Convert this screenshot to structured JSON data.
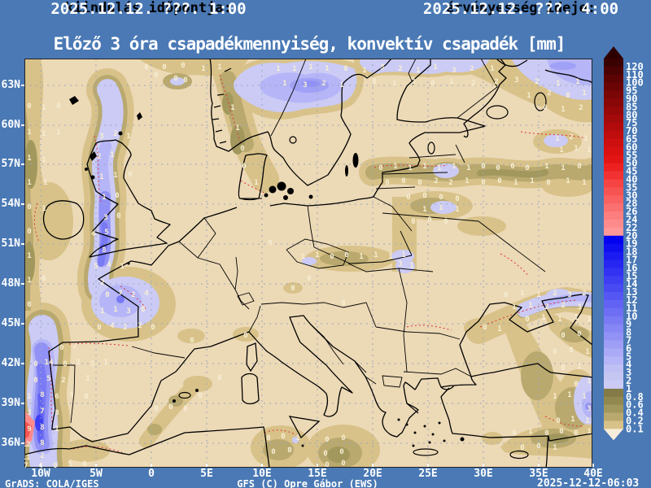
{
  "header": {
    "init_label": "kiindulás időpontja:",
    "init_value": "2025.12.12. ???. 1:00",
    "valid_label": "érvényesség ideje:",
    "valid_value": "2025.12.12. ???. 4:00"
  },
  "title": "Előző 3 óra csapadékmennyiség, konvektív csapadék [mm]",
  "footer": {
    "left": "GrADS: COLA/IGES",
    "center": "GFS (C) Opre Gábor (EWS)",
    "right": "2025-12-12-06:03"
  },
  "colors": {
    "page_bg": "#4a79b5",
    "map_bg": "#ecd9b6",
    "grid": "#9aa8bc",
    "coast": "#000000",
    "red_dash": "#e03434",
    "value_text": "#f7eed3",
    "text_light": "#ffffff",
    "text_dark": "#000000"
  },
  "axes": {
    "lat": [
      [
        "63N",
        33
      ],
      [
        "60N",
        82
      ],
      [
        "57N",
        130
      ],
      [
        "54N",
        179
      ],
      [
        "51N",
        228
      ],
      [
        "48N",
        277
      ],
      [
        "45N",
        326
      ],
      [
        "42N",
        375
      ],
      [
        "39N",
        424
      ],
      [
        "36N",
        473
      ]
    ],
    "lon": [
      [
        "10W",
        20
      ],
      [
        "5W",
        88
      ],
      [
        "0",
        156
      ],
      [
        "5E",
        224
      ],
      [
        "10E",
        292
      ],
      [
        "15E",
        360
      ],
      [
        "20E",
        428
      ],
      [
        "25E",
        496
      ],
      [
        "30E",
        564
      ],
      [
        "35E",
        632
      ],
      [
        "40E",
        699
      ]
    ]
  },
  "colorbar": {
    "arrow_top_color": "#2d0000",
    "arrow_bottom_color": "#f6eedb",
    "labels": [
      "120",
      "110",
      "100",
      "95",
      "90",
      "85",
      "80",
      "75",
      "70",
      "65",
      "60",
      "55",
      "50",
      "45",
      "40",
      "35",
      "30",
      "28",
      "26",
      "24",
      "22",
      "20",
      "19",
      "18",
      "17",
      "16",
      "15",
      "14",
      "13",
      "12",
      "11",
      "10",
      "9",
      "8",
      "7",
      "6",
      "5",
      "4",
      "3",
      "2",
      "1",
      "0.8",
      "0.6",
      "0.4",
      "0.2",
      "0.1"
    ],
    "colors": [
      "#3a0101",
      "#4b0202",
      "#5c0303",
      "#6b0404",
      "#7a0606",
      "#890707",
      "#970808",
      "#a50a0a",
      "#b30b0b",
      "#c00d0d",
      "#cd0f0f",
      "#d91111",
      "#e41515",
      "#ed2121",
      "#f23232",
      "#f64343",
      "#f85353",
      "#fa6262",
      "#fb7070",
      "#fc7e7e",
      "#fd8b8b",
      "#fe9797",
      "#0202f0",
      "#0e0ef0",
      "#1a1af1",
      "#2626f1",
      "#3232f2",
      "#3e3ef2",
      "#4a4af3",
      "#5656f3",
      "#6262f4",
      "#6e6ef4",
      "#7a7af5",
      "#8686f5",
      "#9292f6",
      "#9e9ef6",
      "#aaaaf7",
      "#b5b5f7",
      "#c0c0f4",
      "#c6c6f3",
      "#cbcbf5",
      "#837b47",
      "#918850",
      "#a2985d",
      "#b9a96f",
      "#d8c289"
    ]
  },
  "map": {
    "palette": {
      "o1": "#d8c289",
      "o2": "#b9a96f",
      "o3": "#a2985d",
      "l1": "#cbcbf5",
      "l2": "#b5b5f7",
      "l3": "#a0a0f6",
      "b4": "#9292f6",
      "b6": "#7a7af5",
      "b8": "#6262f4",
      "b10": "#3e3ef2",
      "r20": "#fd8b8b",
      "r22": "#f85353"
    },
    "values": [
      [
        312,
        12,
        "1"
      ],
      [
        332,
        12,
        "1"
      ],
      [
        352,
        10,
        "1"
      ],
      [
        372,
        12,
        "1"
      ],
      [
        395,
        12,
        "0"
      ],
      [
        418,
        14,
        "1"
      ],
      [
        440,
        10,
        "3"
      ],
      [
        462,
        12,
        "2"
      ],
      [
        484,
        14,
        "1"
      ],
      [
        505,
        10,
        "1"
      ],
      [
        528,
        14,
        "3"
      ],
      [
        550,
        12,
        "2"
      ],
      [
        575,
        12,
        "1"
      ],
      [
        320,
        30,
        "1"
      ],
      [
        345,
        32,
        "3"
      ],
      [
        368,
        30,
        "2"
      ],
      [
        390,
        32,
        "1"
      ],
      [
        430,
        28,
        "0"
      ],
      [
        455,
        30,
        "1"
      ],
      [
        478,
        28,
        "2"
      ],
      [
        502,
        30,
        "0"
      ],
      [
        525,
        28,
        "1"
      ],
      [
        552,
        30,
        "2"
      ],
      [
        580,
        28,
        "2"
      ],
      [
        605,
        26,
        "3"
      ],
      [
        630,
        28,
        "2"
      ],
      [
        656,
        30,
        "1"
      ],
      [
        680,
        28,
        "1"
      ],
      [
        620,
        45,
        "1"
      ],
      [
        645,
        42,
        "2"
      ],
      [
        668,
        45,
        "0"
      ],
      [
        688,
        42,
        "1"
      ],
      [
        640,
        60,
        "0"
      ],
      [
        662,
        62,
        "1"
      ],
      [
        684,
        60,
        "2"
      ],
      [
        186,
        24,
        "0"
      ],
      [
        198,
        26,
        "0"
      ],
      [
        162,
        20,
        "0"
      ],
      [
        150,
        10,
        "0"
      ],
      [
        172,
        10,
        "0"
      ],
      [
        195,
        8,
        "0"
      ],
      [
        220,
        12,
        "1"
      ],
      [
        240,
        10,
        "1"
      ],
      [
        256,
        60,
        "1"
      ],
      [
        262,
        85,
        "1"
      ],
      [
        268,
        110,
        "0"
      ],
      [
        270,
        132,
        "0"
      ],
      [
        285,
        152,
        "1"
      ],
      [
        6,
        58,
        "0"
      ],
      [
        24,
        60,
        "1"
      ],
      [
        42,
        58,
        "0"
      ],
      [
        6,
        90,
        "1"
      ],
      [
        24,
        92,
        "1"
      ],
      [
        42,
        90,
        "1"
      ],
      [
        6,
        122,
        "1"
      ],
      [
        24,
        124,
        "1"
      ],
      [
        6,
        152,
        "1"
      ],
      [
        26,
        152,
        "1"
      ],
      [
        6,
        182,
        "0"
      ],
      [
        24,
        184,
        "1"
      ],
      [
        6,
        212,
        "0"
      ],
      [
        6,
        242,
        "1"
      ],
      [
        6,
        272,
        "1"
      ],
      [
        24,
        270,
        "0"
      ],
      [
        6,
        302,
        "0"
      ],
      [
        95,
        95,
        "3"
      ],
      [
        112,
        92,
        "2"
      ],
      [
        128,
        95,
        "1"
      ],
      [
        92,
        120,
        "2"
      ],
      [
        108,
        118,
        "1"
      ],
      [
        95,
        145,
        "1"
      ],
      [
        112,
        143,
        "1"
      ],
      [
        130,
        142,
        "0"
      ],
      [
        98,
        170,
        "1"
      ],
      [
        114,
        168,
        "0"
      ],
      [
        100,
        195,
        "3"
      ],
      [
        116,
        193,
        "0"
      ],
      [
        85,
        215,
        "4"
      ],
      [
        101,
        213,
        "5"
      ],
      [
        98,
        235,
        "8"
      ],
      [
        88,
        255,
        "5"
      ],
      [
        104,
        253,
        "4"
      ],
      [
        120,
        255,
        "1"
      ],
      [
        96,
        275,
        "2"
      ],
      [
        102,
        290,
        "0"
      ],
      [
        118,
        288,
        "7"
      ],
      [
        134,
        290,
        "2"
      ],
      [
        150,
        288,
        "4"
      ],
      [
        96,
        310,
        "1"
      ],
      [
        112,
        308,
        "1"
      ],
      [
        128,
        310,
        "3"
      ],
      [
        146,
        308,
        "0"
      ],
      [
        92,
        330,
        "0"
      ],
      [
        108,
        328,
        "4"
      ],
      [
        124,
        330,
        "2"
      ],
      [
        142,
        328,
        "2"
      ],
      [
        158,
        330,
        "0"
      ],
      [
        46,
        355,
        "0"
      ],
      [
        62,
        353,
        "2"
      ],
      [
        14,
        375,
        "0"
      ],
      [
        30,
        373,
        "14"
      ],
      [
        50,
        375,
        "8"
      ],
      [
        66,
        373,
        "2"
      ],
      [
        84,
        375,
        "5"
      ],
      [
        100,
        373,
        "1"
      ],
      [
        14,
        395,
        "0"
      ],
      [
        30,
        393,
        "5"
      ],
      [
        48,
        395,
        "2"
      ],
      [
        78,
        393,
        "1"
      ],
      [
        6,
        415,
        "1"
      ],
      [
        22,
        413,
        "8"
      ],
      [
        40,
        415,
        "6"
      ],
      [
        58,
        413,
        "5"
      ],
      [
        76,
        415,
        "0"
      ],
      [
        6,
        435,
        "3"
      ],
      [
        22,
        433,
        "7"
      ],
      [
        40,
        435,
        "8"
      ],
      [
        6,
        455,
        "9"
      ],
      [
        22,
        453,
        "8"
      ],
      [
        40,
        455,
        "1"
      ],
      [
        2,
        474,
        "12"
      ],
      [
        22,
        472,
        "8"
      ],
      [
        2,
        490,
        "11"
      ],
      [
        22,
        488,
        "2"
      ],
      [
        2,
        500,
        "7"
      ],
      [
        20,
        500,
        "4"
      ],
      [
        38,
        500,
        "0"
      ],
      [
        56,
        498,
        "5"
      ],
      [
        74,
        498,
        "0"
      ],
      [
        438,
        134,
        "0"
      ],
      [
        456,
        132,
        "1"
      ],
      [
        474,
        134,
        "1"
      ],
      [
        492,
        132,
        "1"
      ],
      [
        510,
        134,
        "1"
      ],
      [
        528,
        132,
        "1"
      ],
      [
        546,
        134,
        "1"
      ],
      [
        564,
        132,
        "0"
      ],
      [
        582,
        134,
        "0"
      ],
      [
        600,
        132,
        "0"
      ],
      [
        618,
        134,
        "0"
      ],
      [
        642,
        132,
        "1"
      ],
      [
        662,
        134,
        "1"
      ],
      [
        682,
        132,
        "0"
      ],
      [
        446,
        152,
        "0"
      ],
      [
        466,
        150,
        "0"
      ],
      [
        486,
        152,
        "0"
      ],
      [
        506,
        150,
        "2"
      ],
      [
        524,
        152,
        "2"
      ],
      [
        544,
        150,
        "1"
      ],
      [
        564,
        152,
        "0"
      ],
      [
        584,
        150,
        "0"
      ],
      [
        604,
        152,
        "1"
      ],
      [
        624,
        150,
        "1"
      ],
      [
        644,
        152,
        "0"
      ],
      [
        668,
        150,
        "1"
      ],
      [
        688,
        152,
        "1"
      ],
      [
        655,
        98,
        "1"
      ],
      [
        672,
        96,
        "2"
      ],
      [
        690,
        98,
        "1"
      ],
      [
        660,
        112,
        "1"
      ],
      [
        678,
        110,
        "1"
      ],
      [
        694,
        112,
        "1"
      ],
      [
        472,
        170,
        "0"
      ],
      [
        492,
        168,
        "0"
      ],
      [
        512,
        170,
        "0"
      ],
      [
        532,
        172,
        "0"
      ],
      [
        492,
        185,
        "1"
      ],
      [
        512,
        183,
        "1"
      ],
      [
        532,
        185,
        "1"
      ],
      [
        478,
        200,
        "0"
      ],
      [
        498,
        198,
        "0"
      ],
      [
        518,
        200,
        "0"
      ],
      [
        342,
        243,
        "1"
      ],
      [
        360,
        241,
        "1"
      ],
      [
        378,
        243,
        "0"
      ],
      [
        396,
        241,
        "0"
      ],
      [
        414,
        243,
        "1"
      ],
      [
        432,
        241,
        "1"
      ],
      [
        450,
        243,
        "1"
      ],
      [
        466,
        241,
        "1"
      ],
      [
        330,
        282,
        "0"
      ],
      [
        462,
        252,
        "3"
      ],
      [
        476,
        254,
        "1"
      ],
      [
        592,
        290,
        "0"
      ],
      [
        612,
        288,
        "1"
      ],
      [
        632,
        290,
        "1"
      ],
      [
        652,
        288,
        "2"
      ],
      [
        670,
        290,
        "3"
      ],
      [
        688,
        288,
        "2"
      ],
      [
        602,
        305,
        "1"
      ],
      [
        622,
        303,
        "1"
      ],
      [
        642,
        305,
        "2"
      ],
      [
        662,
        303,
        "2"
      ],
      [
        682,
        305,
        "3"
      ],
      [
        618,
        320,
        "0"
      ],
      [
        638,
        318,
        "1"
      ],
      [
        658,
        320,
        "1"
      ],
      [
        678,
        318,
        "1"
      ],
      [
        694,
        320,
        "1"
      ],
      [
        566,
        330,
        "0"
      ],
      [
        584,
        332,
        "1"
      ],
      [
        662,
        340,
        "0"
      ],
      [
        682,
        338,
        "0"
      ],
      [
        652,
        360,
        "0"
      ],
      [
        672,
        358,
        "0"
      ],
      [
        692,
        360,
        "1"
      ],
      [
        662,
        380,
        "0"
      ],
      [
        682,
        378,
        "1"
      ],
      [
        694,
        396,
        "1"
      ],
      [
        678,
        400,
        "0"
      ],
      [
        652,
        415,
        "1"
      ],
      [
        670,
        413,
        "1"
      ],
      [
        688,
        415,
        "1"
      ],
      [
        694,
        430,
        "3"
      ],
      [
        656,
        445,
        "0"
      ],
      [
        674,
        443,
        "1"
      ],
      [
        692,
        445,
        "1"
      ],
      [
        602,
        460,
        "0"
      ],
      [
        622,
        458,
        "1"
      ],
      [
        642,
        460,
        "0"
      ],
      [
        660,
        458,
        "0"
      ],
      [
        678,
        460,
        "0"
      ],
      [
        694,
        458,
        "1"
      ],
      [
        612,
        478,
        "0"
      ],
      [
        632,
        476,
        "0"
      ],
      [
        652,
        478,
        "1"
      ],
      [
        372,
        468,
        "0"
      ],
      [
        392,
        466,
        "0"
      ],
      [
        370,
        485,
        "0"
      ],
      [
        390,
        483,
        "0"
      ],
      [
        372,
        499,
        "0"
      ],
      [
        392,
        497,
        "0"
      ],
      [
        300,
        466,
        "0"
      ],
      [
        318,
        464,
        "0"
      ],
      [
        336,
        466,
        "1"
      ],
      [
        306,
        483,
        "0"
      ],
      [
        326,
        481,
        "0"
      ],
      [
        162,
        430,
        "0"
      ],
      [
        180,
        428,
        "0"
      ],
      [
        198,
        430,
        "0"
      ],
      [
        216,
        414,
        "0"
      ],
      [
        240,
        392,
        "0"
      ],
      [
        206,
        346,
        "0"
      ],
      [
        272,
        340,
        "0"
      ],
      [
        392,
        300,
        "0"
      ],
      [
        350,
        270,
        "0"
      ],
      [
        302,
        226,
        "0"
      ]
    ]
  }
}
